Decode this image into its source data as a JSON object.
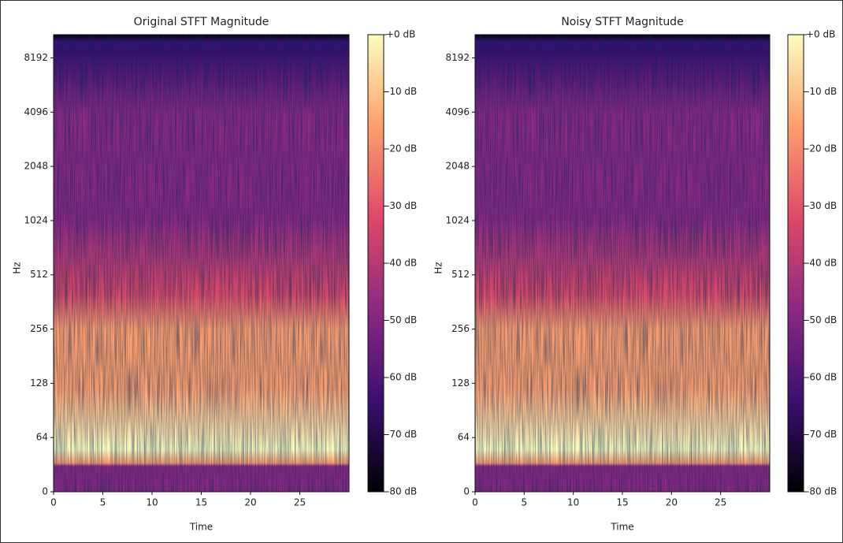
{
  "chart_data": [
    {
      "type": "spectrogram",
      "title": "Original STFT Magnitude",
      "xlabel": "Time",
      "ylabel": "Hz",
      "xlim": [
        0,
        30
      ],
      "xticks": [
        0,
        5,
        10,
        15,
        20,
        25
      ],
      "ylim": [
        0,
        11025
      ],
      "yscale": "symlog",
      "linthresh": 64,
      "yticks": [
        0,
        64,
        128,
        256,
        512,
        1024,
        2048,
        4096,
        8192
      ],
      "colorbar": {
        "lim": [
          -80,
          0
        ],
        "ticks": [
          {
            "value": 0,
            "label": "+0 dB"
          },
          {
            "value": -10,
            "label": "-10 dB"
          },
          {
            "value": -20,
            "label": "-20 dB"
          },
          {
            "value": -30,
            "label": "-30 dB"
          },
          {
            "value": -40,
            "label": "-40 dB"
          },
          {
            "value": -50,
            "label": "-50 dB"
          },
          {
            "value": -60,
            "label": "-60 dB"
          },
          {
            "value": -70,
            "label": "-70 dB"
          },
          {
            "value": -80,
            "label": "-80 dB"
          }
        ]
      },
      "cmap": [
        "#000004",
        "#3b0f70",
        "#8c2981",
        "#de4968",
        "#fe9f6d",
        "#fcfdbf"
      ]
    },
    {
      "type": "spectrogram",
      "title": "Noisy STFT Magnitude",
      "xlabel": "Time",
      "ylabel": "Hz",
      "xlim": [
        0,
        30
      ],
      "xticks": [
        0,
        5,
        10,
        15,
        20,
        25
      ],
      "ylim": [
        0,
        11025
      ],
      "yscale": "symlog",
      "linthresh": 64,
      "yticks": [
        0,
        64,
        128,
        256,
        512,
        1024,
        2048,
        4096,
        8192
      ],
      "colorbar": {
        "lim": [
          -80,
          0
        ],
        "ticks": [
          {
            "value": 0,
            "label": "+0 dB"
          },
          {
            "value": -10,
            "label": "-10 dB"
          },
          {
            "value": -20,
            "label": "-20 dB"
          },
          {
            "value": -30,
            "label": "-30 dB"
          },
          {
            "value": -40,
            "label": "-40 dB"
          },
          {
            "value": -50,
            "label": "-50 dB"
          },
          {
            "value": -60,
            "label": "-60 dB"
          },
          {
            "value": -70,
            "label": "-70 dB"
          },
          {
            "value": -80,
            "label": "-80 dB"
          }
        ]
      },
      "cmap": [
        "#000004",
        "#3b0f70",
        "#8c2981",
        "#de4968",
        "#fe9f6d",
        "#fcfdbf"
      ]
    }
  ]
}
